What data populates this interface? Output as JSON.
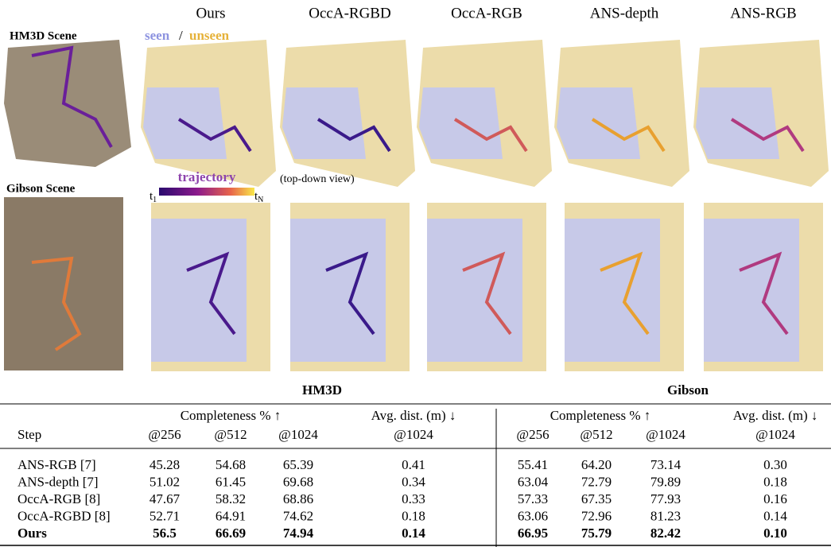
{
  "figure": {
    "row_labels": [
      "HM3D Scene",
      "Gibson Scene"
    ],
    "column_headers": [
      "Ours",
      "OccA-RGBD",
      "OccA-RGB",
      "ANS-depth",
      "ANS-RGB"
    ],
    "legend": {
      "seen": "seen",
      "separator": "/",
      "unseen": "unseen",
      "trajectory": "trajectory",
      "t_start": {
        "base": "t",
        "sub": "1"
      },
      "t_end": {
        "base": "t",
        "sub": "N"
      }
    },
    "annotation": "(top-down view)"
  },
  "table": {
    "groups": [
      "HM3D",
      "Gibson"
    ],
    "subheaders": [
      "Completeness % ↑",
      "Avg. dist. (m) ↓",
      "Completeness % ↑",
      "Avg. dist. (m) ↓"
    ],
    "columns": [
      "Step",
      "@256",
      "@512",
      "@1024",
      "@1024",
      "@256",
      "@512",
      "@1024",
      "@1024"
    ],
    "rows": [
      [
        "ANS-RGB [7]",
        "45.28",
        "54.68",
        "65.39",
        "0.41",
        "55.41",
        "64.20",
        "73.14",
        "0.30"
      ],
      [
        "ANS-depth [7]",
        "51.02",
        "61.45",
        "69.68",
        "0.34",
        "63.04",
        "72.79",
        "79.89",
        "0.18"
      ],
      [
        "OccA-RGB [8]",
        "47.67",
        "58.32",
        "68.86",
        "0.33",
        "57.33",
        "67.35",
        "77.93",
        "0.16"
      ],
      [
        "OccA-RGBD [8]",
        "52.71",
        "64.91",
        "74.62",
        "0.18",
        "63.06",
        "72.96",
        "81.23",
        "0.14"
      ],
      [
        "Ours",
        "56.5",
        "66.69",
        "74.94",
        "0.14",
        "66.95",
        "75.79",
        "82.42",
        "0.10"
      ]
    ]
  }
}
